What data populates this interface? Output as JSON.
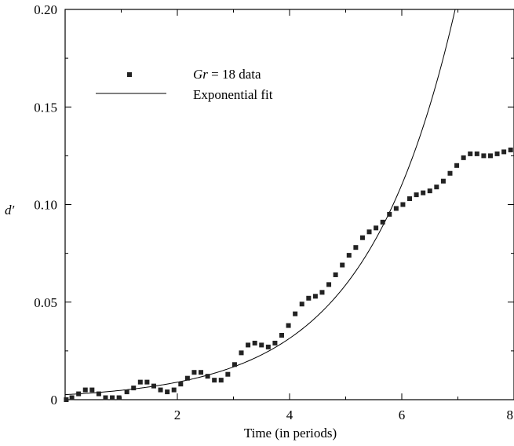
{
  "chart_data": {
    "type": "scatter",
    "title": "",
    "xlabel": "Time (in periods)",
    "ylabel": "d′",
    "xlim": [
      0,
      8
    ],
    "ylim": [
      0,
      0.2
    ],
    "x_ticks": [
      2,
      4,
      6,
      8
    ],
    "x_tick_labels": [
      "2",
      "4",
      "6",
      "8"
    ],
    "y_ticks": [
      0,
      0.05,
      0.1,
      0.15,
      0.2
    ],
    "y_tick_labels": [
      "0",
      "0.05",
      "0.10",
      "0.15",
      "0.20"
    ],
    "grid": false,
    "legend_position": "top-left",
    "legend": {
      "data_label_italic": "Gr",
      "data_label_rest": " = 18 data",
      "fit_label": "Exponential fit"
    },
    "series": [
      {
        "name": "Gr = 18 data",
        "kind": "points",
        "marker": "square",
        "color": "#222222",
        "x": [
          0.02,
          0.12,
          0.24,
          0.36,
          0.48,
          0.6,
          0.72,
          0.84,
          0.96,
          1.1,
          1.22,
          1.34,
          1.46,
          1.58,
          1.7,
          1.82,
          1.94,
          2.06,
          2.18,
          2.3,
          2.42,
          2.54,
          2.66,
          2.78,
          2.9,
          3.02,
          3.14,
          3.26,
          3.38,
          3.5,
          3.62,
          3.74,
          3.86,
          3.98,
          4.1,
          4.22,
          4.34,
          4.46,
          4.58,
          4.7,
          4.82,
          4.94,
          5.06,
          5.18,
          5.3,
          5.42,
          5.54,
          5.66,
          5.78,
          5.9,
          6.02,
          6.14,
          6.26,
          6.38,
          6.5,
          6.62,
          6.74,
          6.86,
          6.98,
          7.1,
          7.22,
          7.34,
          7.46,
          7.58,
          7.7,
          7.82,
          7.94
        ],
        "y": [
          0.0,
          0.001,
          0.003,
          0.005,
          0.005,
          0.003,
          0.001,
          0.001,
          0.001,
          0.004,
          0.006,
          0.009,
          0.009,
          0.007,
          0.005,
          0.004,
          0.005,
          0.008,
          0.011,
          0.014,
          0.014,
          0.012,
          0.01,
          0.01,
          0.013,
          0.018,
          0.024,
          0.028,
          0.029,
          0.028,
          0.027,
          0.029,
          0.033,
          0.038,
          0.044,
          0.049,
          0.052,
          0.053,
          0.055,
          0.059,
          0.064,
          0.069,
          0.074,
          0.078,
          0.083,
          0.086,
          0.088,
          0.091,
          0.095,
          0.098,
          0.1,
          0.103,
          0.105,
          0.106,
          0.107,
          0.109,
          0.112,
          0.116,
          0.12,
          0.124,
          0.126,
          0.126,
          0.125,
          0.125,
          0.126,
          0.127,
          0.128
        ]
      },
      {
        "name": "Exponential fit",
        "kind": "line",
        "color": "#000000",
        "formula": "y = 0.00256 * exp(0.627 * t)",
        "amplitude": 0.00256,
        "rate": 0.627
      }
    ]
  }
}
